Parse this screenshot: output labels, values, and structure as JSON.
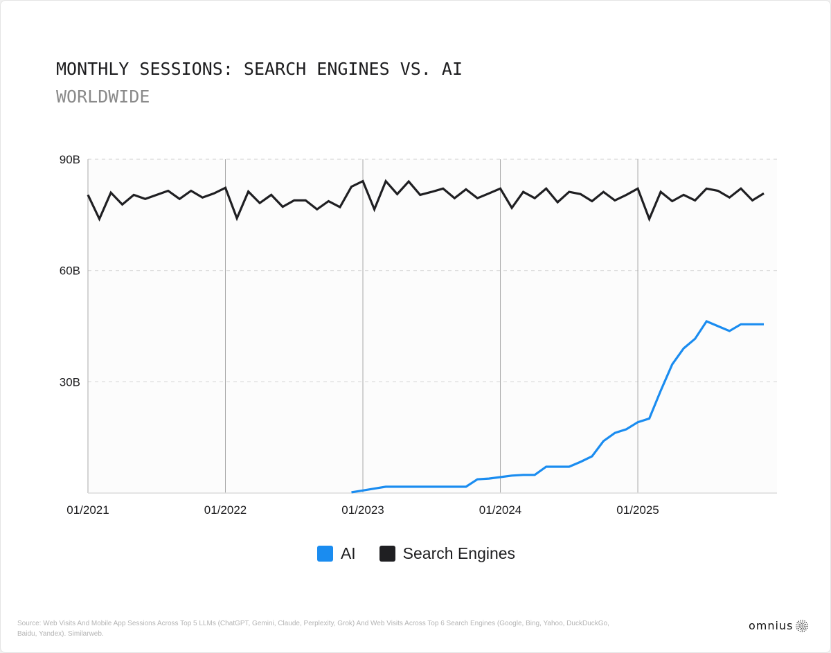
{
  "header": {
    "title": "MONTHLY SESSIONS: SEARCH ENGINES VS. AI",
    "subtitle": "WORLDWIDE"
  },
  "colors": {
    "ai": "#1a8cf0",
    "search": "#1f1f22",
    "grid": "#d8d8d8",
    "year_line": "#a8a8a8"
  },
  "legend": {
    "items": [
      {
        "label": "AI",
        "color": "#1a8cf0"
      },
      {
        "label": "Search Engines",
        "color": "#1f1f22"
      }
    ]
  },
  "footer": {
    "source": "Source: Web Visits And Mobile App Sessions Across Top 5 LLMs (ChatGPT, Gemini, Claude, Perplexity, Grok) And Web Visits Across Top 6 Search Engines (Google, Bing, Yahoo, DuckDuckGo, Baidu, Yandex). Similarweb.",
    "brand": "omnius",
    "brand_icon": "dotted-sphere-icon"
  },
  "chart_data": {
    "type": "line",
    "title": "MONTHLY SESSIONS: SEARCH ENGINES VS. AI",
    "subtitle": "WORLDWIDE",
    "xlabel": "",
    "ylabel": "",
    "x_start": "01/2021",
    "x_end": "12/2025",
    "x_tick_labels": [
      "01/2021",
      "01/2022",
      "01/2023",
      "01/2024",
      "01/2025"
    ],
    "y_tick_labels": [
      "90B",
      "60B",
      "30B"
    ],
    "y_ticks": [
      90,
      60,
      30
    ],
    "ylim": [
      0,
      90
    ],
    "units": "billions of sessions",
    "grid": "horizontal dashed",
    "legend_position": "bottom-center",
    "series": [
      {
        "name": "Search Engines",
        "start_index": 0,
        "values": [
          80.4,
          73.9,
          81.0,
          77.8,
          80.4,
          79.3,
          80.4,
          81.5,
          79.3,
          81.5,
          79.7,
          80.8,
          82.3,
          74.1,
          81.3,
          78.2,
          80.4,
          77.2,
          78.9,
          78.9,
          76.5,
          78.7,
          77.1,
          82.6,
          84.1,
          76.5,
          84.1,
          80.6,
          84.0,
          80.4,
          81.2,
          82.1,
          79.5,
          81.9,
          79.5,
          80.8,
          82.1,
          76.9,
          81.2,
          79.5,
          82.1,
          78.4,
          81.2,
          80.6,
          78.7,
          81.2,
          78.9,
          80.4,
          82.1,
          73.9,
          81.2,
          78.7,
          80.4,
          78.9,
          82.1,
          81.5,
          79.7,
          82.1,
          78.9,
          80.8
        ]
      },
      {
        "name": "AI",
        "start_index": 23,
        "values": [
          0.2,
          0.7,
          1.2,
          1.7,
          1.7,
          1.7,
          1.7,
          1.7,
          1.7,
          1.7,
          1.7,
          3.7,
          3.9,
          4.3,
          4.7,
          4.9,
          4.9,
          7.1,
          7.1,
          7.1,
          8.4,
          9.9,
          14.0,
          16.2,
          17.2,
          19.1,
          20.1,
          27.6,
          34.7,
          39.0,
          41.6,
          46.3,
          45.0,
          43.7,
          45.5,
          45.5,
          45.5
        ]
      }
    ]
  }
}
